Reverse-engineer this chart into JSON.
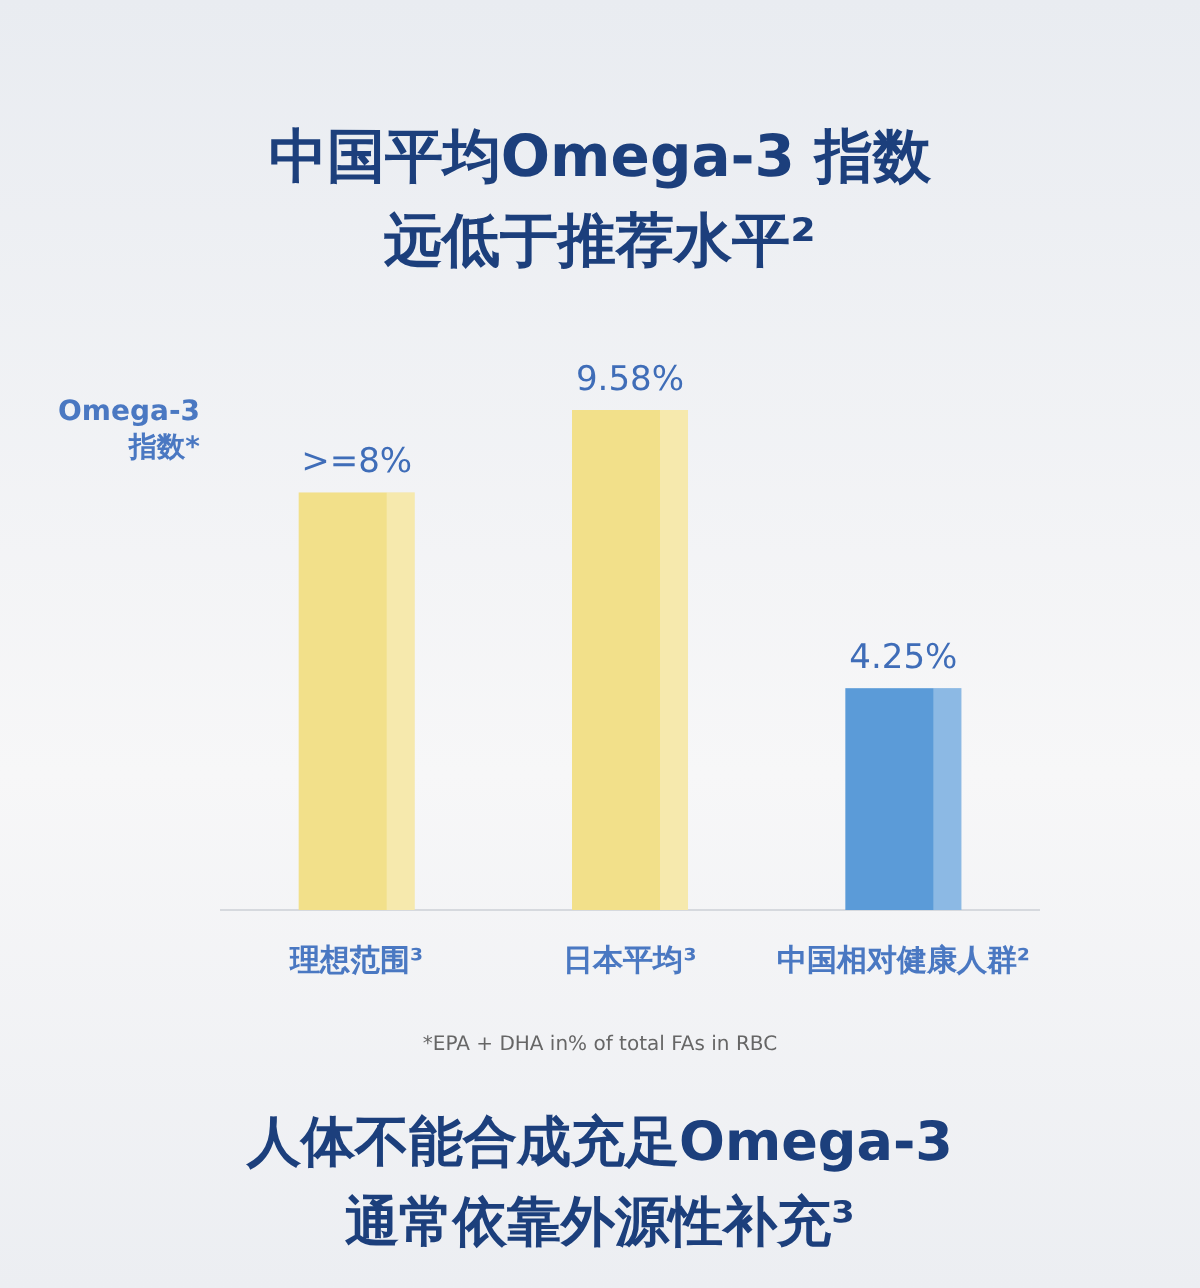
{
  "chart_data": {
    "type": "bar",
    "title": "中国平均Omega-3 指数",
    "subtitle": "远低于推荐水平²",
    "ylabel": "Omega-3 指数*",
    "categories": [
      "理想范围³",
      "日本平均³",
      "中国相对健康人群²"
    ],
    "values": [
      8,
      9.58,
      4.25
    ],
    "colors": [
      "#f2e08a",
      "#f2e08a",
      "#5b9bd8"
    ],
    "value_labels": [
      ">=8%",
      "9.58%",
      "4.25%"
    ],
    "annotations": [
      "*EPA + DHA in% of total FAs in RBC",
      "人体不能合成充足Omega-3",
      "通常依靠外源性补充³"
    ]
  }
}
